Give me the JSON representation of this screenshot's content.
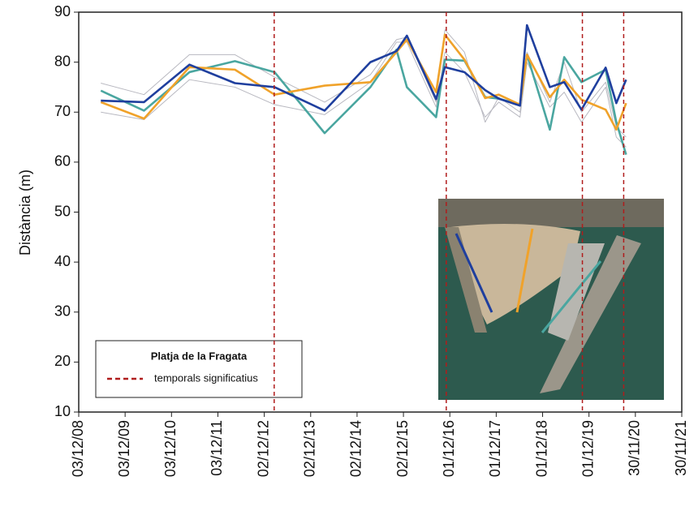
{
  "chart_data": {
    "type": "line",
    "y_label": "Distància (m)",
    "ylim": [
      10,
      90
    ],
    "yticks": [
      10,
      20,
      30,
      40,
      50,
      60,
      70,
      80,
      90
    ],
    "xlim": [
      "2008-12-03",
      "2021-11-30"
    ],
    "xticks": [
      {
        "value": "2008-12-03",
        "label": "03/12/08"
      },
      {
        "value": "2009-12-03",
        "label": "03/12/09"
      },
      {
        "value": "2010-12-03",
        "label": "03/12/10"
      },
      {
        "value": "2011-12-03",
        "label": "03/12/11"
      },
      {
        "value": "2012-12-02",
        "label": "02/12/12"
      },
      {
        "value": "2013-12-02",
        "label": "02/12/13"
      },
      {
        "value": "2014-12-02",
        "label": "02/12/14"
      },
      {
        "value": "2015-12-02",
        "label": "02/12/15"
      },
      {
        "value": "2016-12-01",
        "label": "01/12/16"
      },
      {
        "value": "2017-12-01",
        "label": "01/12/17"
      },
      {
        "value": "2018-12-01",
        "label": "01/12/18"
      },
      {
        "value": "2019-12-01",
        "label": "01/12/19"
      },
      {
        "value": "2020-11-30",
        "label": "30/11/20"
      },
      {
        "value": "2021-11-30",
        "label": "30/11/21"
      }
    ],
    "x": [
      "2009-05-26",
      "2010-05-01",
      "2011-04-23",
      "2012-04-15",
      "2013-02-21",
      "2014-03-22",
      "2015-03-17",
      "2015-10-08",
      "2015-12-29",
      "2016-08-15",
      "2016-10-23",
      "2017-03-26",
      "2017-09-05",
      "2017-12-21",
      "2018-06-06",
      "2018-07-31",
      "2019-01-27",
      "2019-05-20",
      "2019-10-03",
      "2020-04-10",
      "2020-07-03",
      "2020-09-18"
    ],
    "series": [
      {
        "color": "#b8b8c0",
        "values": [
          75.8,
          73.5,
          81.5,
          81.5,
          77,
          72,
          77.5,
          84.5,
          85,
          72,
          86.5,
          82,
          68,
          73,
          70,
          82,
          72,
          80,
          70,
          76,
          67,
          65
        ]
      },
      {
        "color": "#b8b8c0",
        "values": [
          70,
          68.5,
          76.5,
          75,
          71.5,
          69.5,
          76,
          84,
          84,
          71,
          82,
          78,
          69,
          72,
          69,
          80,
          71,
          74,
          68,
          75,
          65,
          63
        ]
      },
      {
        "color": "#4aa6a0",
        "values": [
          74.3,
          70.3,
          78,
          80.2,
          78,
          65.8,
          75,
          82.5,
          75,
          69,
          80.5,
          80.3,
          73,
          72.7,
          71.5,
          81.5,
          66.5,
          81,
          76,
          78.5,
          68,
          61.5
        ]
      },
      {
        "color": "#f0a22a",
        "values": [
          72,
          68.7,
          79,
          78.5,
          73.5,
          75.3,
          76,
          82,
          84.5,
          74,
          85.5,
          80.5,
          72.8,
          73.5,
          71.5,
          81.5,
          73,
          76.5,
          72.5,
          70.5,
          66.5,
          71.8
        ]
      },
      {
        "color": "#1f3f9e",
        "values": [
          72.3,
          72,
          79.5,
          75.8,
          75,
          70.3,
          80,
          82.2,
          85.3,
          72.6,
          79,
          78,
          74.4,
          72.7,
          71.3,
          87.4,
          75,
          76,
          70.5,
          78.9,
          71.8,
          76.5
        ]
      }
    ],
    "storms": [
      "2013-02-18",
      "2016-11-03",
      "2019-10-10",
      "2020-08-30"
    ],
    "storm_color": "#b01c1c",
    "legend_title": "Platja de la Fragata",
    "legend_storms": "temporals significatius"
  }
}
